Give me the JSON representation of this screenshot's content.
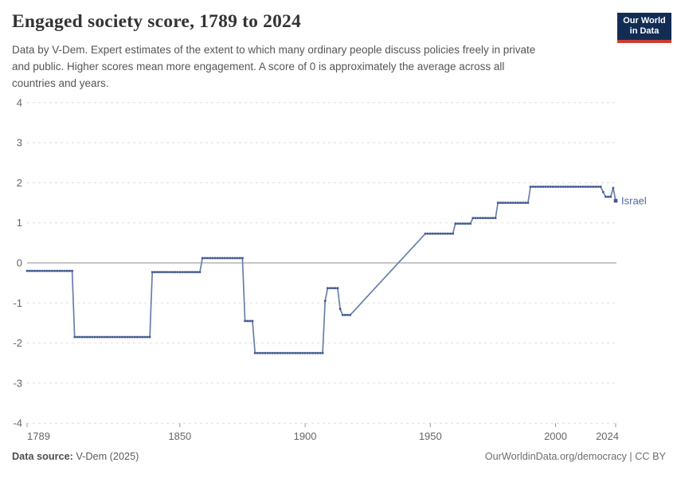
{
  "header": {
    "title": "Engaged society score, 1789 to 2024",
    "subtitle_lines": [
      "Data by V-Dem. Expert estimates of the extent to which many ordinary people discuss policies freely in private",
      "and public. Higher scores mean more engagement. A score of 0 is approximately the average across all",
      "countries and years."
    ]
  },
  "logo": {
    "line1": "Our World",
    "line2": "in Data",
    "bg_color": "#122c54",
    "bar_color": "#ca3c31"
  },
  "chart_data": {
    "type": "line",
    "title": "Engaged society score, 1789 to 2024",
    "xlabel": "",
    "ylabel": "",
    "xlim": [
      1789,
      2024
    ],
    "ylim": [
      -4,
      4
    ],
    "y_ticks": [
      4,
      3,
      2,
      1,
      0,
      -1,
      -2,
      -3,
      -4
    ],
    "x_ticks": [
      1789,
      1850,
      1900,
      1950,
      2000,
      2024
    ],
    "grid": "dashed horizontal, solid zero line",
    "legend_position": "end-of-line label",
    "series": [
      {
        "name": "Israel",
        "line_color": "#687fad",
        "marker_color": "#41598e",
        "label_color": "#4c6a9c",
        "segments": [
          {
            "from": 1789,
            "to": 1807,
            "value": -0.2
          },
          {
            "from": 1808,
            "to": 1838,
            "value": -1.85
          },
          {
            "from": 1839,
            "to": 1858,
            "value": -0.23
          },
          {
            "from": 1859,
            "to": 1875,
            "value": 0.12
          },
          {
            "from": 1876,
            "to": 1879,
            "value": -1.45
          },
          {
            "from": 1880,
            "to": 1907,
            "value": -2.25
          },
          {
            "from": 1908,
            "to": 1908,
            "value": -0.95
          },
          {
            "from": 1909,
            "to": 1913,
            "value": -0.63
          },
          {
            "from": 1914,
            "to": 1914,
            "value": -1.15
          },
          {
            "from": 1915,
            "to": 1918,
            "value": -1.3
          },
          {
            "gap": true,
            "from": 1918,
            "to": 1948
          },
          {
            "from": 1948,
            "to": 1959,
            "value": 0.73
          },
          {
            "from": 1960,
            "to": 1966,
            "value": 0.98
          },
          {
            "from": 1967,
            "to": 1976,
            "value": 1.12
          },
          {
            "from": 1977,
            "to": 1989,
            "value": 1.5
          },
          {
            "from": 1990,
            "to": 2018,
            "value": 1.9
          },
          {
            "from": 2019,
            "to": 2019,
            "value": 1.77
          },
          {
            "from": 2020,
            "to": 2022,
            "value": 1.65
          },
          {
            "from": 2023,
            "to": 2023,
            "value": 1.87
          },
          {
            "from": 2024,
            "to": 2024,
            "value": 1.55
          }
        ]
      }
    ]
  },
  "footer": {
    "source_label": "Data source:",
    "source_value": " V-Dem (2025)",
    "right_text": "OurWorldinData.org/democracy | CC BY"
  }
}
